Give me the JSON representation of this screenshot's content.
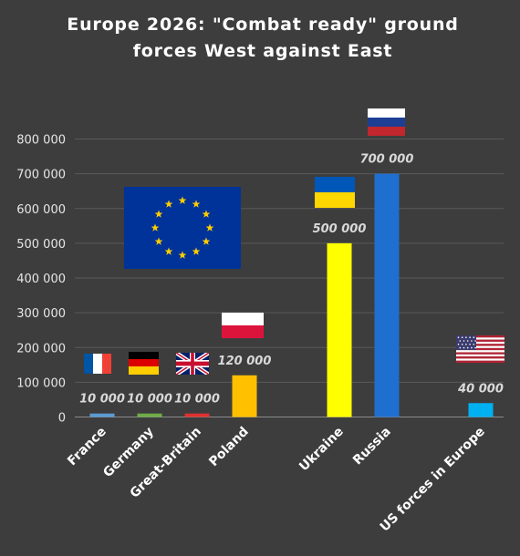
{
  "chart_data": {
    "type": "bar",
    "title_line1": "Europe 2026: \"Combat ready\" ground",
    "title_line2": "forces West against East",
    "categories": [
      "France",
      "Germany",
      "Great-Britain",
      "Poland",
      "Ukraine",
      "Russia",
      "US forces in Europe"
    ],
    "values": [
      10000,
      10000,
      10000,
      120000,
      500000,
      700000,
      40000
    ],
    "data_labels": [
      "10 000",
      "10 000",
      "10 000",
      "120 000",
      "500 000",
      "700 000",
      "40 000"
    ],
    "colors": [
      "#5b9bd5",
      "#70ad47",
      "#e03030",
      "#ffc000",
      "#ffff00",
      "#1f6fd0",
      "#00b0f0"
    ],
    "ylim": [
      0,
      800000
    ],
    "yticks": [
      0,
      100000,
      200000,
      300000,
      400000,
      500000,
      600000,
      700000,
      800000
    ],
    "ytick_labels": [
      "0",
      "100 000",
      "200 000",
      "300 000",
      "400 000",
      "500 000",
      "600 000",
      "700 000",
      "800 000"
    ],
    "grid": true,
    "legend": "none",
    "flag_icons": [
      "france-flag-icon",
      "germany-flag-icon",
      "uk-flag-icon",
      "poland-flag-icon",
      "ukraine-flag-icon",
      "russia-flag-icon",
      "usa-flag-icon",
      "eu-flag-icon"
    ]
  }
}
